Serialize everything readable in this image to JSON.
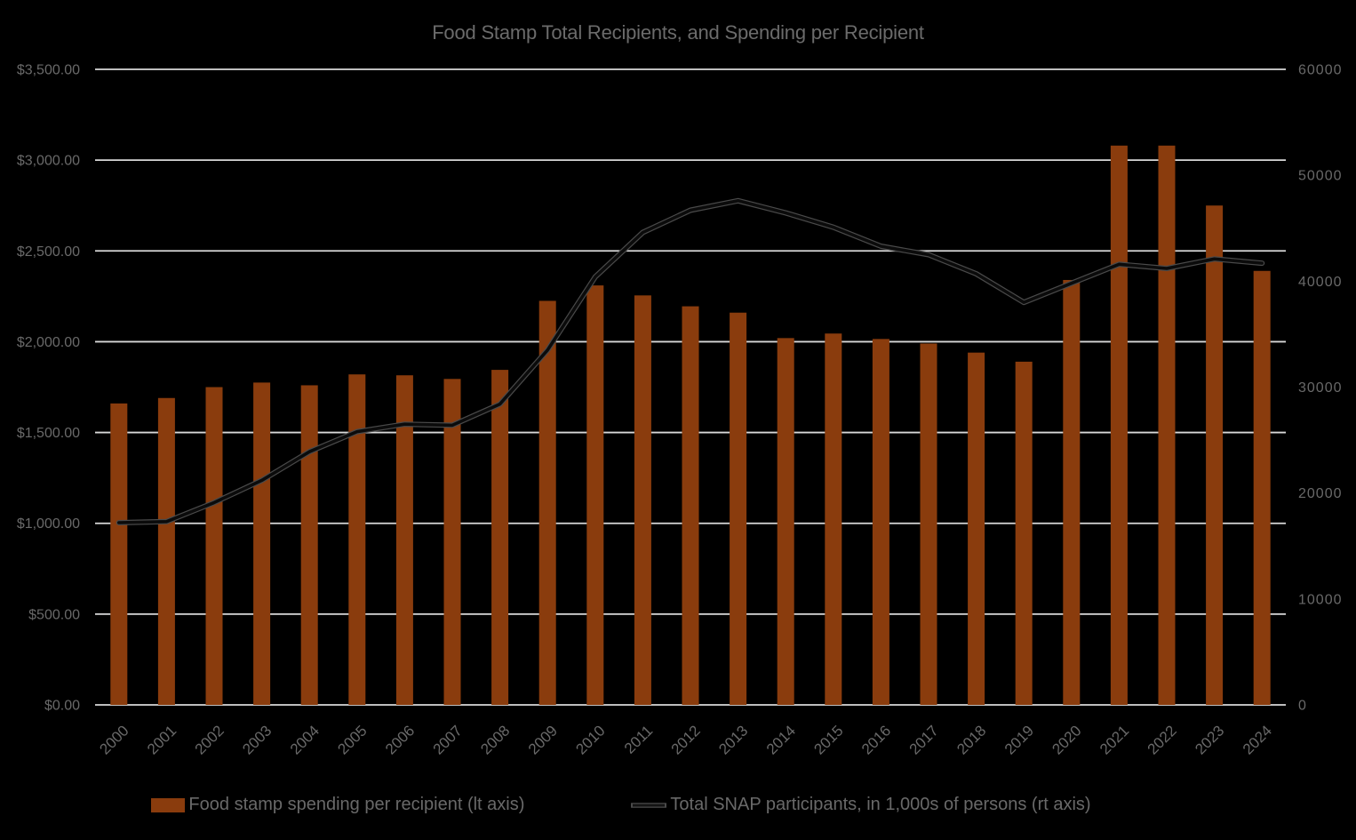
{
  "title": "Food Stamp Total Recipients, and Spending per Recipient",
  "colors": {
    "background": "#000000",
    "bar": "#8A3C0D",
    "line_core": "#0B0B0B",
    "line_halo": "#4A4A4A",
    "gridline": "#D9D9D9",
    "text": "#696969"
  },
  "chart_data": {
    "type": "bar",
    "subtype": "bar+line dual axis",
    "title": "Food Stamp Total Recipients, and Spending per Recipient",
    "categories": [
      "2000",
      "2001",
      "2002",
      "2003",
      "2004",
      "2005",
      "2006",
      "2007",
      "2008",
      "2009",
      "2010",
      "2011",
      "2012",
      "2013",
      "2014",
      "2015",
      "2016",
      "2017",
      "2018",
      "2019",
      "2020",
      "2021",
      "2022",
      "2023",
      "2024"
    ],
    "series": [
      {
        "name": "Food stamp spending per recipient (lt axis)",
        "type": "bar",
        "axis": "left",
        "color": "#8A3C0D",
        "values": [
          1660,
          1690,
          1750,
          1775,
          1760,
          1820,
          1815,
          1795,
          1845,
          2225,
          2310,
          2255,
          2195,
          2160,
          2020,
          2045,
          2015,
          1990,
          1940,
          1890,
          2340,
          3080,
          3080,
          2750,
          2390
        ]
      },
      {
        "name": "Total SNAP participants, in 1,000s of persons (rt axis)",
        "type": "line",
        "axis": "right",
        "color": "#0B0B0B",
        "values": [
          17200,
          17300,
          19100,
          21200,
          23900,
          25800,
          26500,
          26400,
          28400,
          33500,
          40400,
          44600,
          46700,
          47600,
          46450,
          45100,
          43300,
          42500,
          40700,
          38000,
          39800,
          41600,
          41200,
          42100,
          41700
        ]
      }
    ],
    "left_axis": {
      "min": 0,
      "max": 3500,
      "step": 500,
      "tick_labels": [
        "$0.00",
        "$500.00",
        "$1,000.00",
        "$1,500.00",
        "$2,000.00",
        "$2,500.00",
        "$3,000.00",
        "$3,500.00"
      ]
    },
    "right_axis": {
      "min": 0,
      "max": 60000,
      "step": 10000,
      "tick_labels": [
        "0",
        "10000",
        "20000",
        "30000",
        "40000",
        "50000",
        "60000"
      ]
    },
    "grid": true,
    "legend_position": "bottom",
    "x_tick_rotation": -45
  },
  "legend": {
    "items": [
      {
        "label": "Food stamp spending per recipient (lt axis)",
        "swatch": "bar-swatch"
      },
      {
        "label": "Total SNAP participants, in 1,000s of persons (rt axis)",
        "swatch": "line-swatch"
      }
    ]
  }
}
